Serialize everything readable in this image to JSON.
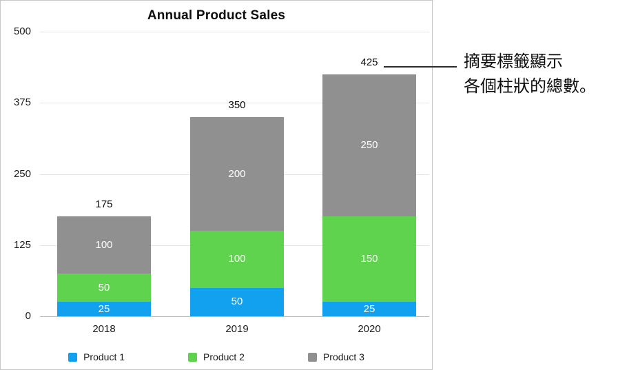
{
  "annotation": {
    "line1": "摘要標籤顯示",
    "line2": "各個柱狀的總數。"
  },
  "chart_data": {
    "type": "bar",
    "stacked": true,
    "title": "Annual Product Sales",
    "categories": [
      "2018",
      "2019",
      "2020"
    ],
    "series": [
      {
        "name": "Product 1",
        "color": "#12A1EE",
        "values": [
          25,
          50,
          25
        ]
      },
      {
        "name": "Product 2",
        "color": "#5FD34D",
        "values": [
          50,
          100,
          150
        ]
      },
      {
        "name": "Product 3",
        "color": "#909090",
        "values": [
          100,
          200,
          250
        ]
      }
    ],
    "totals": [
      175,
      350,
      425
    ],
    "y_ticks": [
      0,
      125,
      250,
      375,
      500
    ],
    "ylim": [
      0,
      500
    ],
    "xlabel": "",
    "ylabel": "",
    "grid": true,
    "legend_position": "bottom",
    "segment_labels_color": "#ffffff"
  }
}
